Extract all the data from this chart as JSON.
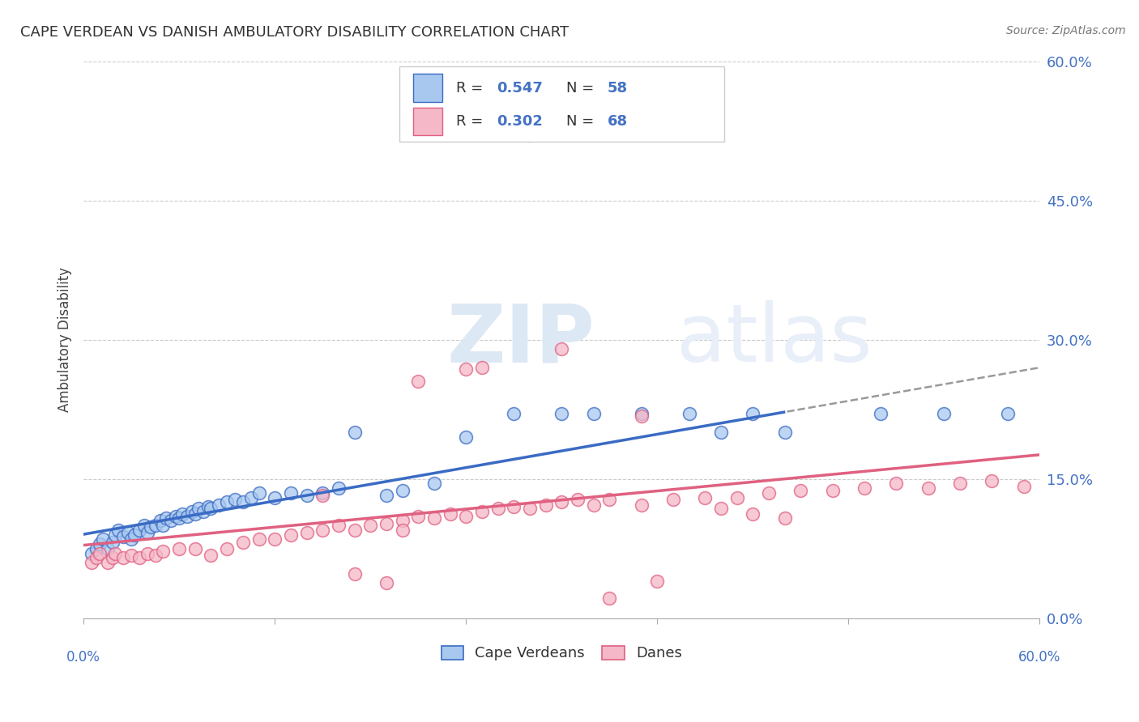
{
  "title": "CAPE VERDEAN VS DANISH AMBULATORY DISABILITY CORRELATION CHART",
  "source": "Source: ZipAtlas.com",
  "ylabel": "Ambulatory Disability",
  "x_min": 0.0,
  "x_max": 0.6,
  "y_min": 0.0,
  "y_max": 0.6,
  "ytick_values": [
    0.0,
    0.15,
    0.3,
    0.45,
    0.6
  ],
  "xtick_values": [
    0.0,
    0.12,
    0.24,
    0.36,
    0.48,
    0.6
  ],
  "gridline_values": [
    0.15,
    0.3,
    0.45,
    0.6
  ],
  "cape_verdean_color": "#A8C8F0",
  "cape_verdean_color_dark": "#3A6BC4",
  "danes_color": "#F5B8C8",
  "danes_color_dark": "#E06080",
  "R_cv": 0.547,
  "N_cv": 58,
  "R_dk": 0.302,
  "N_dk": 68,
  "legend_label_cv": "Cape Verdeans",
  "legend_label_dk": "Danes",
  "cv_x": [
    0.005,
    0.008,
    0.01,
    0.012,
    0.015,
    0.018,
    0.02,
    0.022,
    0.025,
    0.028,
    0.03,
    0.032,
    0.035,
    0.038,
    0.04,
    0.042,
    0.045,
    0.048,
    0.05,
    0.052,
    0.055,
    0.058,
    0.06,
    0.062,
    0.065,
    0.068,
    0.07,
    0.072,
    0.075,
    0.078,
    0.08,
    0.085,
    0.09,
    0.095,
    0.1,
    0.105,
    0.11,
    0.12,
    0.13,
    0.14,
    0.15,
    0.16,
    0.17,
    0.19,
    0.2,
    0.22,
    0.24,
    0.27,
    0.3,
    0.32,
    0.35,
    0.38,
    0.4,
    0.42,
    0.44,
    0.5,
    0.54,
    0.58
  ],
  "cv_y": [
    0.07,
    0.075,
    0.08,
    0.085,
    0.075,
    0.082,
    0.09,
    0.095,
    0.088,
    0.092,
    0.085,
    0.09,
    0.095,
    0.1,
    0.092,
    0.098,
    0.1,
    0.105,
    0.1,
    0.108,
    0.105,
    0.11,
    0.108,
    0.112,
    0.11,
    0.115,
    0.112,
    0.118,
    0.115,
    0.12,
    0.118,
    0.122,
    0.125,
    0.128,
    0.125,
    0.13,
    0.135,
    0.13,
    0.135,
    0.132,
    0.135,
    0.14,
    0.2,
    0.132,
    0.138,
    0.145,
    0.195,
    0.22,
    0.22,
    0.22,
    0.22,
    0.22,
    0.2,
    0.22,
    0.2,
    0.22,
    0.22,
    0.22
  ],
  "dk_x": [
    0.005,
    0.008,
    0.01,
    0.015,
    0.018,
    0.02,
    0.025,
    0.03,
    0.035,
    0.04,
    0.045,
    0.05,
    0.06,
    0.07,
    0.08,
    0.09,
    0.1,
    0.11,
    0.12,
    0.13,
    0.14,
    0.15,
    0.16,
    0.17,
    0.18,
    0.19,
    0.2,
    0.21,
    0.22,
    0.23,
    0.24,
    0.25,
    0.26,
    0.27,
    0.28,
    0.29,
    0.3,
    0.31,
    0.32,
    0.33,
    0.35,
    0.37,
    0.39,
    0.41,
    0.43,
    0.45,
    0.47,
    0.49,
    0.51,
    0.53,
    0.55,
    0.57,
    0.59,
    0.4,
    0.42,
    0.44,
    0.33,
    0.36,
    0.3,
    0.25,
    0.28,
    0.35,
    0.2,
    0.15,
    0.17,
    0.19,
    0.21,
    0.24
  ],
  "dk_y": [
    0.06,
    0.065,
    0.07,
    0.06,
    0.065,
    0.07,
    0.065,
    0.068,
    0.065,
    0.07,
    0.068,
    0.072,
    0.075,
    0.075,
    0.068,
    0.075,
    0.082,
    0.085,
    0.085,
    0.09,
    0.092,
    0.095,
    0.1,
    0.095,
    0.1,
    0.102,
    0.105,
    0.11,
    0.108,
    0.112,
    0.11,
    0.115,
    0.118,
    0.12,
    0.118,
    0.122,
    0.125,
    0.128,
    0.122,
    0.128,
    0.122,
    0.128,
    0.13,
    0.13,
    0.135,
    0.138,
    0.138,
    0.14,
    0.145,
    0.14,
    0.145,
    0.148,
    0.142,
    0.118,
    0.112,
    0.108,
    0.022,
    0.04,
    0.29,
    0.27,
    0.52,
    0.218,
    0.095,
    0.132,
    0.048,
    0.038,
    0.255,
    0.268
  ]
}
